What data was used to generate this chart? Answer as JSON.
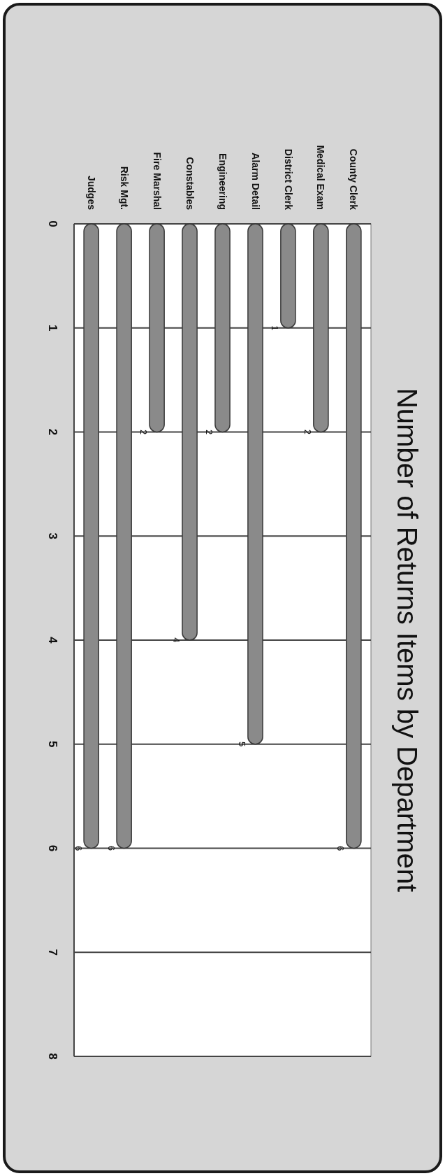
{
  "chart_data": {
    "type": "bar",
    "title": "Number of Returns Items by Department",
    "categories": [
      "Judges",
      "Risk Mgt.",
      "Fire Marshal",
      "Constables",
      "Engineering",
      "Alarm Detail",
      "District Clerk",
      "Medical Exam",
      "County Clerk"
    ],
    "values": [
      6,
      6,
      2,
      4,
      2,
      5,
      1,
      2,
      6
    ],
    "color": "#8a8a8a",
    "ylim": [
      8,
      0
    ],
    "yticks": [
      0,
      1,
      2,
      3,
      4,
      5,
      6,
      7,
      8
    ],
    "grid": "y",
    "data_labels": true
  }
}
